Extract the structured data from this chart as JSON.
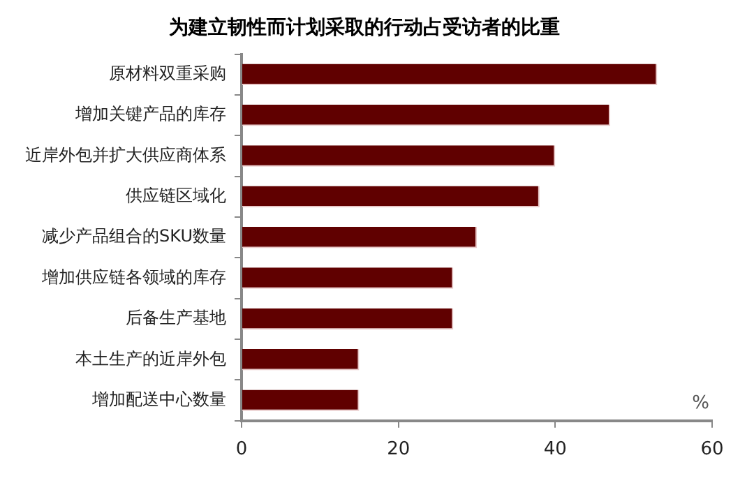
{
  "chart_data": {
    "type": "bar",
    "orientation": "horizontal",
    "title": "为建立韧性而计划采取的行动占受访者的比重",
    "xlabel": "%",
    "categories": [
      "原材料双重采购",
      "增加关键产品的库存",
      "近岸外包并扩大供应商体系",
      "供应链区域化",
      "减少产品组合的SKU数量",
      "增加供应链各领域的库存",
      "后备生产基地",
      "本土生产的近岸外包",
      "增加配送中心数量"
    ],
    "values": [
      53,
      47,
      40,
      38,
      30,
      27,
      27,
      15,
      15
    ],
    "color": "#600000",
    "xlim": [
      0,
      60
    ],
    "xticks": [
      0,
      20,
      40,
      60
    ],
    "grid": false,
    "legend": false
  }
}
